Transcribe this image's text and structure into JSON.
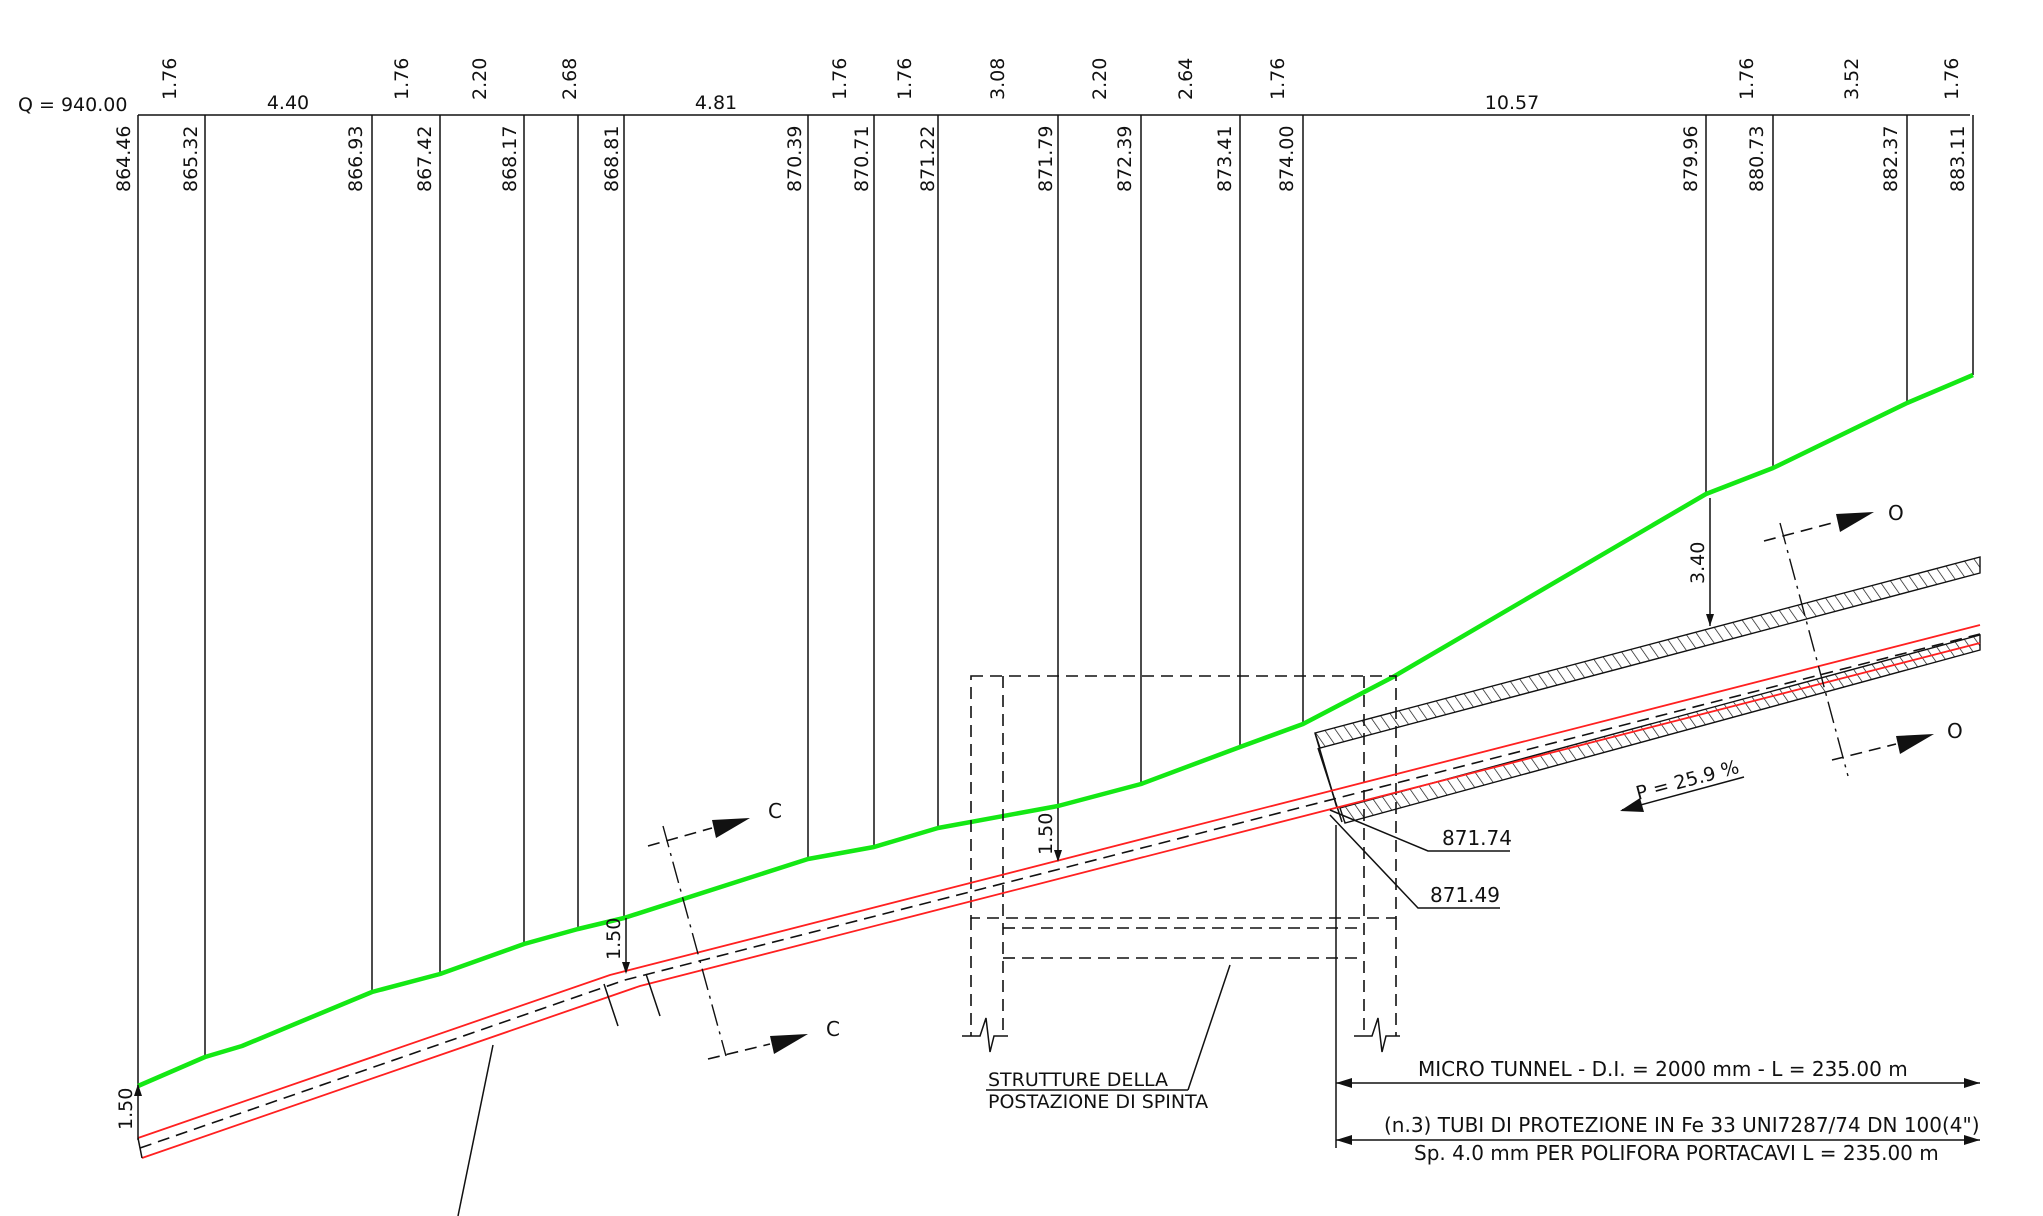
{
  "datum_label": "Q = 940.00",
  "partials": [
    "1.76",
    "4.40",
    "1.76",
    "2.20",
    "2.68",
    "4.81",
    "1.76",
    "1.76",
    "3.08",
    "2.20",
    "2.64",
    "1.76",
    "10.57",
    "1.76",
    "3.52",
    "1.76"
  ],
  "elevations": [
    "864.46",
    "865.32",
    "866.93",
    "867.42",
    "868.17",
    "868.81",
    "870.39",
    "870.71",
    "871.22",
    "871.79",
    "872.39",
    "873.41",
    "874.00",
    "879.96",
    "880.73",
    "882.37",
    "883.11"
  ],
  "depth_labels": [
    "1.50",
    "1.50",
    "1.50",
    "3.40"
  ],
  "section_c": "C",
  "section_o": "O",
  "pipe_elev_top": "871.74",
  "pipe_elev_bottom": "871.49",
  "slope_label": "P = 25.9 %",
  "structure_note": [
    "STRUTTURE DELLA",
    "POSTAZIONE DI SPINTA"
  ],
  "tunnel_note": "MICRO TUNNEL - D.I. = 2000 mm - L = 235.00 m",
  "pipes_note": [
    "(n.3) TUBI DI PROTEZIONE IN Fe 33 UNI7287/74 DN 100(4\")",
    "Sp. 4.0 mm PER POLIFORA PORTACAVI L = 235.00 m"
  ],
  "colors": {
    "ground": "#14e814",
    "pipe": "#ff2020",
    "ink": "#111111"
  }
}
